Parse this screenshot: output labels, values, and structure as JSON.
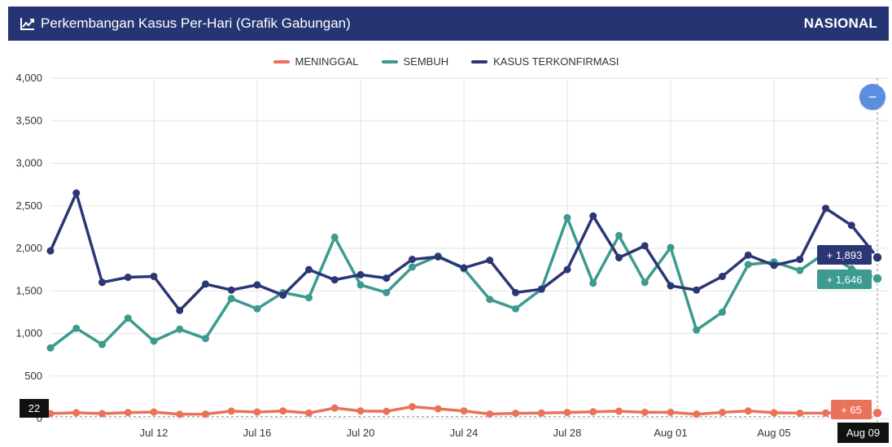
{
  "header": {
    "title": "Perkembangan Kasus Per-Hari (Grafik Gabungan)",
    "region": "NASIONAL",
    "title_icon": "line-chart-icon"
  },
  "zoom": {
    "icon": "minus-icon",
    "label": "−"
  },
  "crosshair": {
    "x_label": "Aug 09",
    "y_label": "22",
    "values": {
      "confirmed": "+ 1,893",
      "recovered": "+ 1,646",
      "deaths": "+ 65"
    }
  },
  "colors": {
    "header_bg": "#253574",
    "deaths": "#e8735a",
    "recovered": "#3c9a8f",
    "confirmed": "#2b3675",
    "zoom_button": "#5b8de0"
  },
  "chart_data": {
    "type": "line",
    "title": "Perkembangan Kasus Per-Hari (Grafik Gabungan)",
    "x": [
      "Jul 08",
      "Jul 09",
      "Jul 10",
      "Jul 11",
      "Jul 12",
      "Jul 13",
      "Jul 14",
      "Jul 15",
      "Jul 16",
      "Jul 17",
      "Jul 18",
      "Jul 19",
      "Jul 20",
      "Jul 21",
      "Jul 22",
      "Jul 23",
      "Jul 24",
      "Jul 25",
      "Jul 26",
      "Jul 27",
      "Jul 28",
      "Jul 29",
      "Jul 30",
      "Jul 31",
      "Aug 01",
      "Aug 02",
      "Aug 03",
      "Aug 04",
      "Aug 05",
      "Aug 06",
      "Aug 07",
      "Aug 08",
      "Aug 09"
    ],
    "x_ticks": [
      "Jul 12",
      "Jul 16",
      "Jul 20",
      "Jul 24",
      "Jul 28",
      "Aug 01",
      "Aug 05",
      "Aug 09"
    ],
    "y_ticks": [
      "0",
      "500",
      "1,000",
      "1,500",
      "2,000",
      "2,500",
      "3,000",
      "3,500",
      "4,000"
    ],
    "ylim": [
      0,
      4000
    ],
    "grid": true,
    "legend_position": "top-center",
    "series": [
      {
        "name": "MENINGGAL",
        "color": "#e8735a",
        "values": [
          58,
          68,
          57,
          70,
          76,
          50,
          52,
          87,
          76,
          89,
          64,
          123,
          89,
          84,
          139,
          114,
          89,
          53,
          61,
          64,
          71,
          79,
          86,
          73,
          73,
          51,
          72,
          88,
          68,
          63,
          65,
          75,
          65
        ]
      },
      {
        "name": "SEMBUH",
        "color": "#3c9a8f",
        "values": [
          830,
          1060,
          870,
          1180,
          910,
          1050,
          940,
          1410,
          1290,
          1480,
          1420,
          2130,
          1570,
          1480,
          1780,
          1910,
          1760,
          1400,
          1290,
          1520,
          2360,
          1590,
          2150,
          1600,
          2010,
          1040,
          1250,
          1810,
          1840,
          1740,
          1950,
          1760,
          1646
        ]
      },
      {
        "name": "KASUS TERKONFIRMASI",
        "color": "#2b3675",
        "values": [
          1970,
          2650,
          1600,
          1660,
          1670,
          1270,
          1580,
          1510,
          1570,
          1450,
          1750,
          1630,
          1690,
          1650,
          1870,
          1900,
          1770,
          1860,
          1480,
          1520,
          1750,
          2380,
          1890,
          2030,
          1560,
          1510,
          1670,
          1920,
          1800,
          1870,
          2470,
          2270,
          1893
        ]
      }
    ]
  }
}
